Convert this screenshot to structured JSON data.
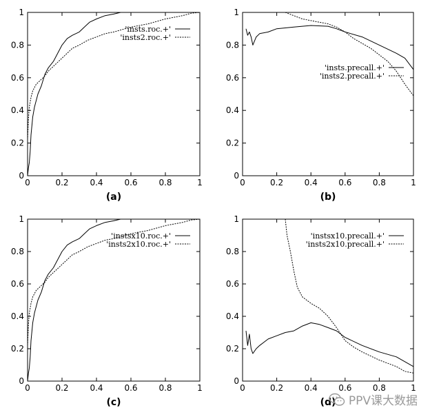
{
  "watermark": {
    "text": "PPV课大数据",
    "icon": "wechat-icon"
  },
  "chart_data": [
    {
      "type": "line",
      "panel_label": "(a)",
      "xlim": [
        0,
        1
      ],
      "ylim": [
        0,
        1
      ],
      "x_ticks": [
        "0",
        "0.2",
        "0.4",
        "0.6",
        "0.8",
        "1"
      ],
      "y_ticks": [
        "0",
        "0.2",
        "0.4",
        "0.6",
        "0.8",
        "1"
      ],
      "grid": false,
      "legend_position": "top-right",
      "series": [
        {
          "name": "'insts.roc.+'",
          "style": "solid",
          "points": [
            [
              0,
              0
            ],
            [
              0.005,
              0.05
            ],
            [
              0.01,
              0.08
            ],
            [
              0.015,
              0.15
            ],
            [
              0.02,
              0.25
            ],
            [
              0.03,
              0.36
            ],
            [
              0.04,
              0.42
            ],
            [
              0.05,
              0.46
            ],
            [
              0.06,
              0.5
            ],
            [
              0.08,
              0.55
            ],
            [
              0.1,
              0.62
            ],
            [
              0.12,
              0.66
            ],
            [
              0.15,
              0.7
            ],
            [
              0.18,
              0.76
            ],
            [
              0.2,
              0.8
            ],
            [
              0.23,
              0.84
            ],
            [
              0.26,
              0.86
            ],
            [
              0.3,
              0.88
            ],
            [
              0.33,
              0.91
            ],
            [
              0.36,
              0.94
            ],
            [
              0.4,
              0.96
            ],
            [
              0.45,
              0.98
            ],
            [
              0.5,
              0.99
            ],
            [
              0.54,
              1
            ],
            [
              1,
              1
            ]
          ]
        },
        {
          "name": "'insts2.roc.+'",
          "style": "dotted",
          "points": [
            [
              0,
              0.22
            ],
            [
              0.005,
              0.35
            ],
            [
              0.01,
              0.42
            ],
            [
              0.02,
              0.48
            ],
            [
              0.03,
              0.52
            ],
            [
              0.05,
              0.56
            ],
            [
              0.07,
              0.58
            ],
            [
              0.1,
              0.61
            ],
            [
              0.12,
              0.64
            ],
            [
              0.15,
              0.67
            ],
            [
              0.18,
              0.7
            ],
            [
              0.22,
              0.74
            ],
            [
              0.26,
              0.78
            ],
            [
              0.3,
              0.8
            ],
            [
              0.35,
              0.83
            ],
            [
              0.4,
              0.85
            ],
            [
              0.45,
              0.87
            ],
            [
              0.5,
              0.88
            ],
            [
              0.6,
              0.91
            ],
            [
              0.7,
              0.93
            ],
            [
              0.8,
              0.96
            ],
            [
              0.9,
              0.98
            ],
            [
              0.95,
              0.995
            ],
            [
              1,
              1
            ]
          ]
        }
      ]
    },
    {
      "type": "line",
      "panel_label": "(b)",
      "xlim": [
        0,
        1
      ],
      "ylim": [
        0,
        1
      ],
      "x_ticks": [
        "0",
        "0.2",
        "0.4",
        "0.6",
        "0.8",
        "1"
      ],
      "y_ticks": [
        "0",
        "0.2",
        "0.4",
        "0.6",
        "0.8",
        "1"
      ],
      "grid": false,
      "legend_position": "center-right",
      "series": [
        {
          "name": "'insts.precall.+'",
          "style": "solid",
          "points": [
            [
              0.02,
              0.9
            ],
            [
              0.03,
              0.86
            ],
            [
              0.04,
              0.88
            ],
            [
              0.05,
              0.85
            ],
            [
              0.06,
              0.8
            ],
            [
              0.08,
              0.85
            ],
            [
              0.1,
              0.87
            ],
            [
              0.15,
              0.88
            ],
            [
              0.2,
              0.9
            ],
            [
              0.3,
              0.91
            ],
            [
              0.4,
              0.92
            ],
            [
              0.5,
              0.915
            ],
            [
              0.55,
              0.9
            ],
            [
              0.6,
              0.88
            ],
            [
              0.7,
              0.85
            ],
            [
              0.8,
              0.8
            ],
            [
              0.9,
              0.75
            ],
            [
              0.95,
              0.72
            ],
            [
              1,
              0.65
            ]
          ]
        },
        {
          "name": "'insts2.precall.+'",
          "style": "dotted",
          "points": [
            [
              0.25,
              1
            ],
            [
              0.3,
              0.98
            ],
            [
              0.35,
              0.96
            ],
            [
              0.4,
              0.95
            ],
            [
              0.5,
              0.93
            ],
            [
              0.55,
              0.91
            ],
            [
              0.6,
              0.88
            ],
            [
              0.65,
              0.84
            ],
            [
              0.7,
              0.81
            ],
            [
              0.75,
              0.78
            ],
            [
              0.8,
              0.74
            ],
            [
              0.85,
              0.7
            ],
            [
              0.9,
              0.64
            ],
            [
              0.95,
              0.56
            ],
            [
              1,
              0.49
            ]
          ]
        }
      ]
    },
    {
      "type": "line",
      "panel_label": "(c)",
      "xlim": [
        0,
        1
      ],
      "ylim": [
        0,
        1
      ],
      "x_ticks": [
        "0",
        "0.2",
        "0.4",
        "0.6",
        "0.8",
        "1"
      ],
      "y_ticks": [
        "0",
        "0.2",
        "0.4",
        "0.6",
        "0.8",
        "1"
      ],
      "grid": false,
      "legend_position": "top-right",
      "series": [
        {
          "name": "'instsx10.roc.+'",
          "style": "solid",
          "points": [
            [
              0,
              0
            ],
            [
              0.005,
              0.05
            ],
            [
              0.01,
              0.08
            ],
            [
              0.015,
              0.15
            ],
            [
              0.02,
              0.25
            ],
            [
              0.03,
              0.36
            ],
            [
              0.04,
              0.42
            ],
            [
              0.05,
              0.46
            ],
            [
              0.06,
              0.5
            ],
            [
              0.08,
              0.55
            ],
            [
              0.1,
              0.62
            ],
            [
              0.12,
              0.66
            ],
            [
              0.15,
              0.7
            ],
            [
              0.18,
              0.76
            ],
            [
              0.2,
              0.8
            ],
            [
              0.23,
              0.84
            ],
            [
              0.26,
              0.86
            ],
            [
              0.3,
              0.88
            ],
            [
              0.33,
              0.91
            ],
            [
              0.36,
              0.94
            ],
            [
              0.4,
              0.96
            ],
            [
              0.45,
              0.98
            ],
            [
              0.5,
              0.99
            ],
            [
              0.54,
              1
            ],
            [
              1,
              1
            ]
          ]
        },
        {
          "name": "'insts2x10.roc.+'",
          "style": "dotted",
          "points": [
            [
              0,
              0.22
            ],
            [
              0.005,
              0.35
            ],
            [
              0.01,
              0.42
            ],
            [
              0.02,
              0.48
            ],
            [
              0.03,
              0.52
            ],
            [
              0.05,
              0.56
            ],
            [
              0.07,
              0.58
            ],
            [
              0.1,
              0.61
            ],
            [
              0.12,
              0.64
            ],
            [
              0.15,
              0.67
            ],
            [
              0.18,
              0.7
            ],
            [
              0.22,
              0.74
            ],
            [
              0.26,
              0.78
            ],
            [
              0.3,
              0.8
            ],
            [
              0.35,
              0.83
            ],
            [
              0.4,
              0.85
            ],
            [
              0.45,
              0.87
            ],
            [
              0.5,
              0.88
            ],
            [
              0.6,
              0.91
            ],
            [
              0.7,
              0.93
            ],
            [
              0.8,
              0.96
            ],
            [
              0.9,
              0.98
            ],
            [
              0.95,
              0.995
            ],
            [
              1,
              1
            ]
          ]
        }
      ]
    },
    {
      "type": "line",
      "panel_label": "(d)",
      "xlim": [
        0,
        1
      ],
      "ylim": [
        0,
        1
      ],
      "x_ticks": [
        "0",
        "0.2",
        "0.4",
        "0.6",
        "0.8",
        "1"
      ],
      "y_ticks": [
        "0",
        "0.2",
        "0.4",
        "0.6",
        "0.8",
        "1"
      ],
      "grid": false,
      "legend_position": "top-right",
      "series": [
        {
          "name": "'instsx10.precall.+'",
          "style": "solid",
          "points": [
            [
              0.02,
              0.31
            ],
            [
              0.03,
              0.22
            ],
            [
              0.04,
              0.29
            ],
            [
              0.05,
              0.2
            ],
            [
              0.06,
              0.17
            ],
            [
              0.08,
              0.2
            ],
            [
              0.1,
              0.22
            ],
            [
              0.15,
              0.26
            ],
            [
              0.2,
              0.28
            ],
            [
              0.25,
              0.3
            ],
            [
              0.3,
              0.31
            ],
            [
              0.35,
              0.34
            ],
            [
              0.4,
              0.36
            ],
            [
              0.45,
              0.35
            ],
            [
              0.5,
              0.33
            ],
            [
              0.55,
              0.31
            ],
            [
              0.6,
              0.27
            ],
            [
              0.7,
              0.22
            ],
            [
              0.8,
              0.18
            ],
            [
              0.9,
              0.15
            ],
            [
              1,
              0.09
            ]
          ]
        },
        {
          "name": "'insts2x10.precall.+'",
          "style": "dotted",
          "points": [
            [
              0.25,
              1
            ],
            [
              0.26,
              0.9
            ],
            [
              0.28,
              0.8
            ],
            [
              0.3,
              0.68
            ],
            [
              0.32,
              0.58
            ],
            [
              0.35,
              0.52
            ],
            [
              0.4,
              0.48
            ],
            [
              0.45,
              0.45
            ],
            [
              0.5,
              0.4
            ],
            [
              0.55,
              0.33
            ],
            [
              0.6,
              0.25
            ],
            [
              0.65,
              0.21
            ],
            [
              0.7,
              0.18
            ],
            [
              0.8,
              0.13
            ],
            [
              0.9,
              0.09
            ],
            [
              0.95,
              0.06
            ],
            [
              1,
              0.05
            ]
          ]
        }
      ]
    }
  ]
}
